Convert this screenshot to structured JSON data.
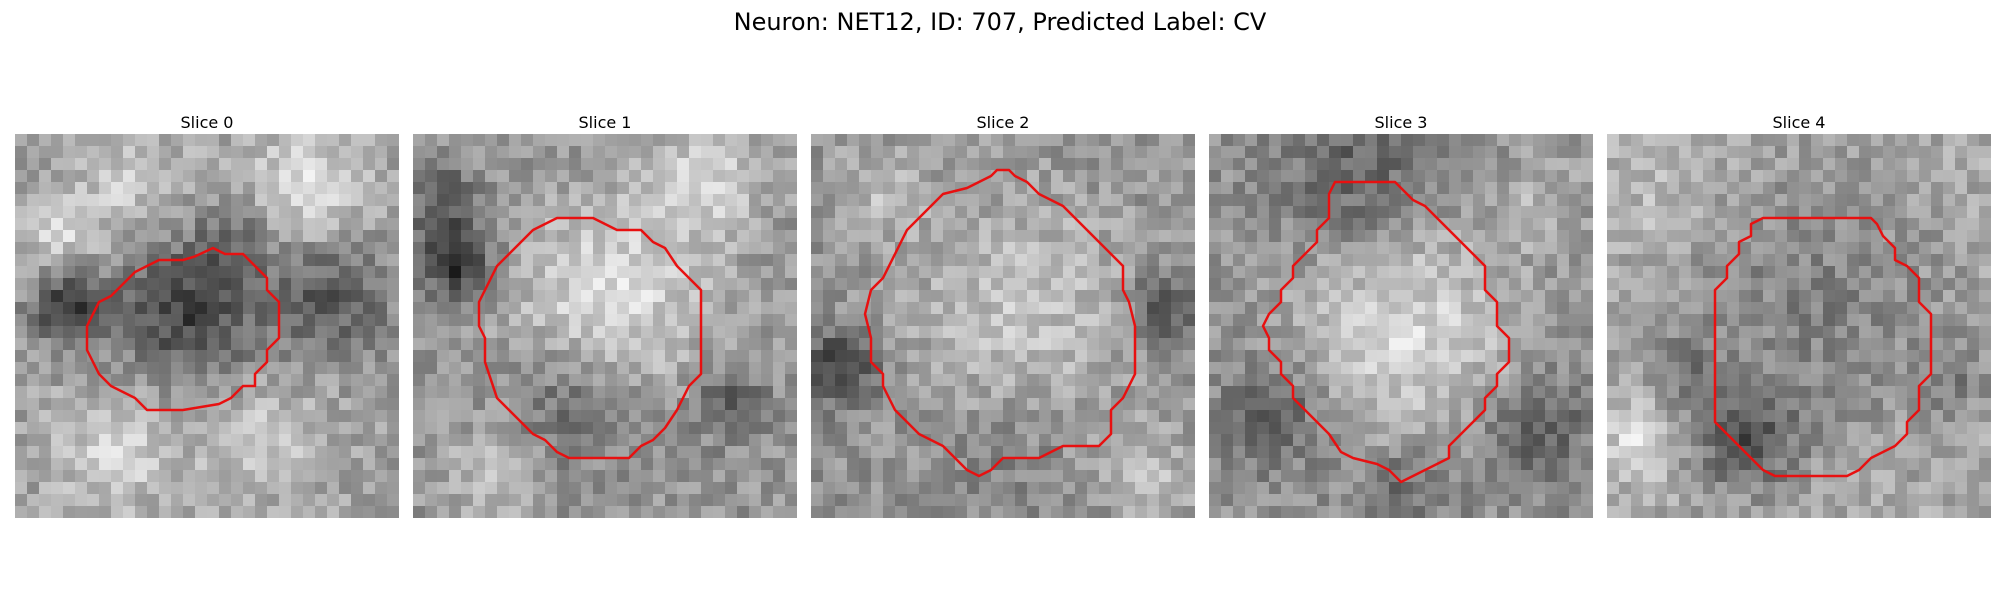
{
  "figure": {
    "title": "Neuron: NET12, ID: 707, Predicted Label: CV",
    "contour_color": "#e81010"
  },
  "slices": [
    {
      "label": "Slice 0"
    },
    {
      "label": "Slice 1"
    },
    {
      "label": "Slice 2"
    },
    {
      "label": "Slice 3"
    },
    {
      "label": "Slice 4"
    }
  ]
}
